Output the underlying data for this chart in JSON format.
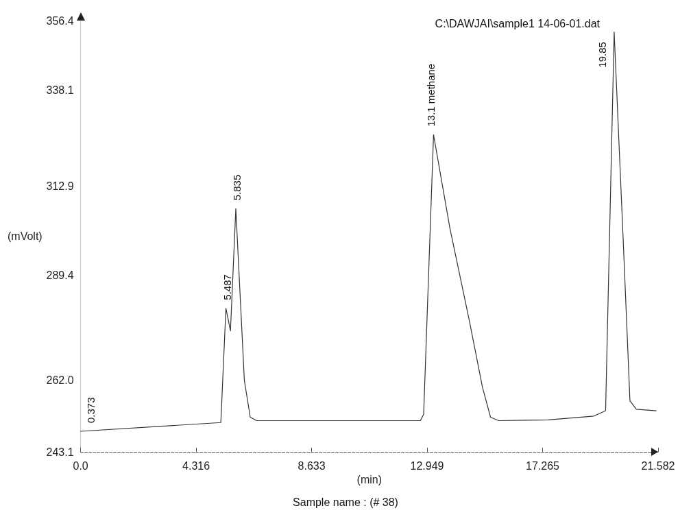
{
  "chart_data": {
    "type": "line",
    "xlabel": "(min)",
    "ylabel": "(mVolt)",
    "xlim": [
      0,
      21.582
    ],
    "xticks": [
      {
        "value": 0,
        "label": "0.0"
      },
      4.316,
      8.633,
      12.949,
      17.265,
      21.582
    ],
    "ylim": [
      243.1,
      356.4
    ],
    "yticks": [
      243.1,
      {
        "value": 262,
        "label": "262.0"
      },
      289.4,
      312.9,
      338.1,
      356.4
    ],
    "grid": false,
    "marker": "none",
    "line_style": "solid",
    "series": [
      {
        "color": "#333333",
        "x": [
          0,
          5.24,
          5.43,
          5.6,
          5.8,
          6.12,
          6.34,
          6.58,
          7.68,
          12.7,
          12.82,
          13.19,
          13.8,
          14.53,
          15.02,
          15.32,
          15.63,
          17.47,
          19.18,
          19.62,
          19.94,
          20.28,
          20.53,
          20.77,
          21.51
        ],
        "values": [
          248.5,
          250.8,
          280.8,
          274.9,
          307,
          261.8,
          252.2,
          251.3,
          251.3,
          251.3,
          253,
          326.4,
          301.9,
          277.5,
          260,
          252.2,
          251.3,
          251.5,
          252.5,
          253.9,
          353.4,
          298.4,
          256.5,
          254.3,
          253.9
        ]
      }
    ],
    "annotations": [
      {
        "text": "0.373",
        "x": 0.373,
        "y": 248.5
      },
      {
        "text": "5.487",
        "x": 5.487,
        "y": 280.8
      },
      {
        "text": "5.835",
        "x": 5.835,
        "y": 307
      },
      {
        "text": "13.1 methane",
        "x": 13.1,
        "y": 326.4
      },
      {
        "text": "19.85",
        "x": 19.85,
        "y": 353.4
      },
      "C:\\DAWJAI\\sample1 14-06-01.dat",
      "Sample name : (# 38)"
    ]
  }
}
